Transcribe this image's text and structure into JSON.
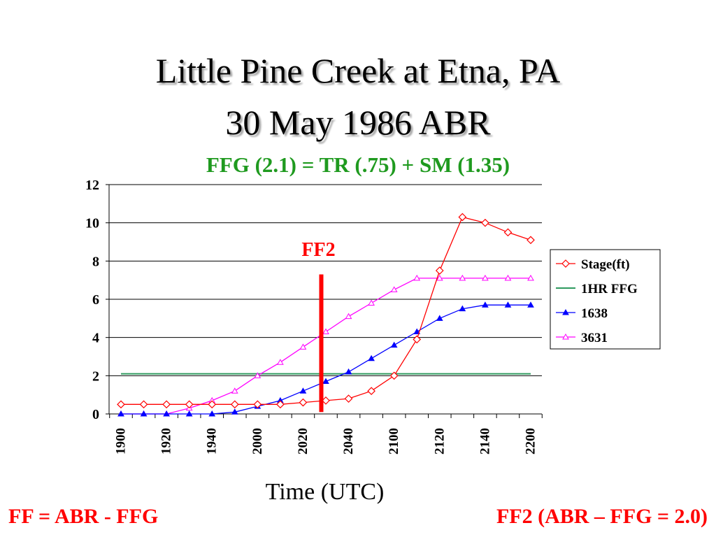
{
  "title_line1": "Little Pine Creek at Etna, PA",
  "title_line2": "30 May 1986 ABR",
  "subtitle": "FFG (2.1) = TR (.75) + SM (1.35)",
  "footer_left": "FF = ABR - FFG",
  "footer_right": "FF2 (ABR – FFG = 2.0)",
  "chart_data": {
    "type": "line",
    "xlabel": "Time (UTC)",
    "ylabel": "",
    "ylim": [
      0,
      12
    ],
    "yticks": [
      0,
      2,
      4,
      6,
      8,
      10,
      12
    ],
    "categories": [
      "1900",
      "1910",
      "1920",
      "1930",
      "1940",
      "1950",
      "2000",
      "2010",
      "2020",
      "2030",
      "2040",
      "2050",
      "2100",
      "2110",
      "2120",
      "2130",
      "2140",
      "2150",
      "2200"
    ],
    "xtick_labels": [
      "1900",
      "1920",
      "1940",
      "2000",
      "2020",
      "2040",
      "2100",
      "2120",
      "2140",
      "2200"
    ],
    "grid": true,
    "legend_position": "right",
    "series": [
      {
        "name": "Stage(ft)",
        "color": "#ff0000",
        "marker": "diamond-open",
        "values": [
          0.5,
          0.5,
          0.5,
          0.5,
          0.5,
          0.5,
          0.5,
          0.5,
          0.6,
          0.7,
          0.8,
          1.2,
          2.0,
          3.9,
          7.5,
          10.3,
          10.0,
          9.5,
          9.1
        ]
      },
      {
        "name": "1HR FFG",
        "color": "#2e9a5e",
        "marker": "none",
        "values": [
          2.1,
          2.1,
          2.1,
          2.1,
          2.1,
          2.1,
          2.1,
          2.1,
          2.1,
          2.1,
          2.1,
          2.1,
          2.1,
          2.1,
          2.1,
          2.1,
          2.1,
          2.1,
          2.1
        ]
      },
      {
        "name": "1638",
        "color": "#0000ff",
        "marker": "triangle-filled",
        "values": [
          0,
          0,
          0,
          0,
          0,
          0.1,
          0.4,
          0.7,
          1.2,
          1.7,
          2.2,
          2.9,
          3.6,
          4.3,
          5.0,
          5.5,
          5.7,
          5.7,
          5.7
        ]
      },
      {
        "name": "3631",
        "color": "#ff00ff",
        "marker": "triangle-open",
        "values": [
          0,
          0,
          0,
          0.3,
          0.7,
          1.2,
          2.0,
          2.7,
          3.5,
          4.3,
          5.1,
          5.8,
          6.5,
          7.1,
          7.1,
          7.1,
          7.1,
          7.1,
          7.1
        ]
      }
    ],
    "annotation": {
      "text": "FF2",
      "color": "#ff0000",
      "x_index": 8.8,
      "y_from": 0.1,
      "y_to": 7.3
    }
  }
}
